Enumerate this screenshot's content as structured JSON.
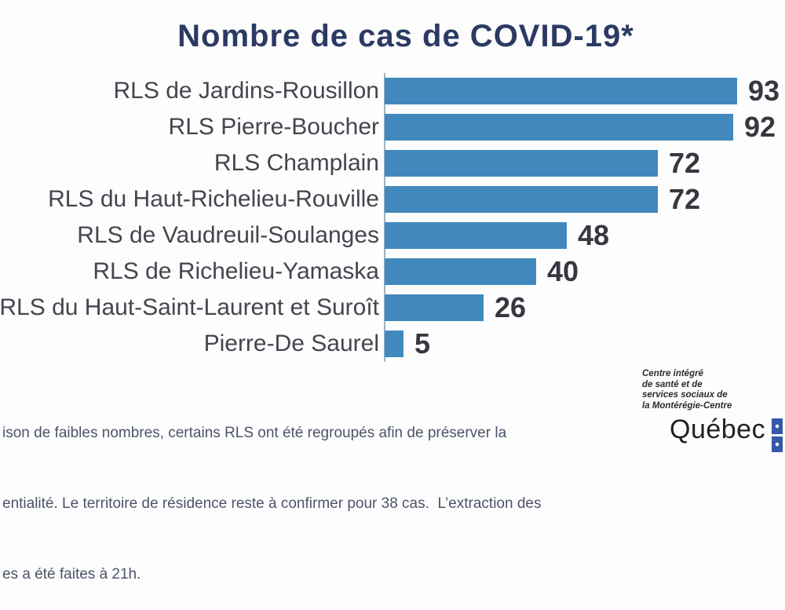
{
  "title": "Nombre de cas de COVID-19*",
  "chart_data": {
    "type": "bar",
    "orientation": "horizontal",
    "title": "Nombre de cas de COVID-19*",
    "categories": [
      "RLS de Jardins-Rousillon",
      "RLS Pierre-Boucher",
      "RLS Champlain",
      "RLS du Haut-Richelieu-Rouville",
      "RLS de Vaudreuil-Soulanges",
      "RLS de Richelieu-Yamaska",
      "RLS du Haut-Saint-Laurent et Suroît",
      "Pierre-De Saurel"
    ],
    "values": [
      93,
      92,
      72,
      72,
      48,
      40,
      26,
      5
    ],
    "xlabel": "",
    "ylabel": "",
    "xlim": [
      0,
      100
    ],
    "grid": false,
    "legend": false,
    "bar_color": "#4189bd",
    "value_labels_shown": true
  },
  "footnote": {
    "lines": [
      "ison de faibles nombres, certains RLS ont été regroupés afin de préserver la",
      "entialité. Le territoire de résidence reste à confirmer pour 38 cas.  L’extraction des",
      "es a été faites à 21h."
    ]
  },
  "logo": {
    "org_lines": [
      "Centre intégré",
      "de santé et de",
      "services sociaux de",
      "la Montérégie-Centre"
    ],
    "wordmark": "Québec",
    "flag_icon": "quebec-flag-icon"
  },
  "colors": {
    "title": "#2b3a63",
    "bar": "#4189bd",
    "category_label": "#42464e",
    "value_label": "#35383f",
    "footnote_text": "#4b5468",
    "flag_blue": "#3558a8",
    "background": "#fdfdfd"
  }
}
